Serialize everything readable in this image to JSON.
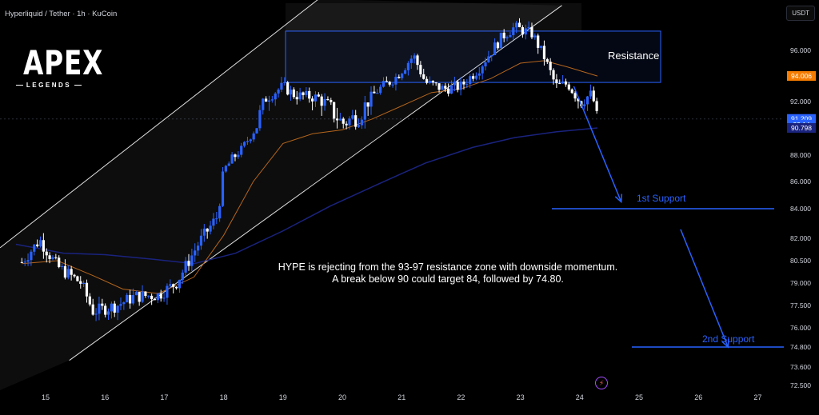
{
  "header": {
    "symbol": "Hyperliquid / Tether · 1h · KuCoin",
    "currency": "USDT"
  },
  "logo": {
    "main": "APEX",
    "sub": "LEGENDS"
  },
  "note": {
    "line1": "HYPE is rejecting from the 93-97 resistance zone with downside momentum.",
    "line2": "A break below 90 could target 84, followed by 74.80."
  },
  "labels": {
    "resistance": "Resistance",
    "support1": "1st Support",
    "support2": "2nd Support"
  },
  "colors": {
    "bull": "#2962ff",
    "bear": "#ffffff",
    "ema_short": "#b5651d",
    "ema_long": "#1a237e",
    "resistance_box": "#2962ff",
    "support": "#2962ff",
    "price_tag": "#f57c00"
  },
  "icons": {
    "flash": "lightning-icon"
  },
  "chart_data": {
    "type": "candlestick",
    "x_ticks": [
      "15",
      "16",
      "17",
      "18",
      "19",
      "20",
      "21",
      "22",
      "23",
      "24",
      "25",
      "26",
      "27"
    ],
    "y_ticks": [
      "96.000",
      "94.006",
      "92.000",
      "91.209",
      "23:14",
      "90.798",
      "88.000",
      "86.000",
      "84.000",
      "82.000",
      "80.500",
      "79.000",
      "77.500",
      "76.000",
      "74.800",
      "73.600",
      "72.500"
    ],
    "price_tags": [
      {
        "label": "94.006",
        "value": 94.006,
        "color": "#f57c00"
      },
      {
        "label": "91.209",
        "value": 91.209,
        "color": "#2962ff"
      },
      {
        "label": "23:14",
        "value": 90.95,
        "color": "#2962ff"
      },
      {
        "label": "90.798",
        "value": 90.798,
        "color": "#1a237e"
      }
    ],
    "resistance_zone": [
      93.5,
      97.5
    ],
    "support_levels": [
      84.0,
      74.8
    ],
    "price_path": [
      [
        "14.6",
        80.4
      ],
      [
        "14.9",
        81.9
      ],
      [
        "15.2",
        80.1
      ],
      [
        "15.6",
        79.0
      ],
      [
        "15.8",
        77.1
      ],
      [
        "16.2",
        77.5
      ],
      [
        "16.5",
        78.1
      ],
      [
        "16.9",
        78.2
      ],
      [
        "17.2",
        79.0
      ],
      [
        "17.6",
        81.8
      ],
      [
        "17.9",
        83.5
      ],
      [
        "18.0",
        86.8
      ],
      [
        "18.3",
        88.6
      ],
      [
        "18.7",
        92.2
      ],
      [
        "19.0",
        93.2
      ],
      [
        "19.2",
        92.5
      ],
      [
        "19.6",
        92.3
      ],
      [
        "20.0",
        91.0
      ],
      [
        "20.3",
        91.4
      ],
      [
        "20.6",
        92.9
      ],
      [
        "20.9",
        93.9
      ],
      [
        "21.2",
        95.6
      ],
      [
        "21.4",
        93.5
      ],
      [
        "21.7",
        93.0
      ],
      [
        "22.0",
        93.2
      ],
      [
        "22.3",
        94.6
      ],
      [
        "22.7",
        97.1
      ],
      [
        "22.9",
        97.8
      ],
      [
        "23.2",
        97.3
      ],
      [
        "23.4",
        95.5
      ],
      [
        "23.6",
        93.2
      ],
      [
        "23.8",
        93.4
      ],
      [
        "24.0",
        92.0
      ],
      [
        "24.2",
        92.6
      ],
      [
        "24.3",
        91.0
      ]
    ],
    "ema_short": [
      [
        "14.6",
        80.3
      ],
      [
        "15.2",
        80.5
      ],
      [
        "15.8",
        79.5
      ],
      [
        "16.3",
        78.6
      ],
      [
        "16.9",
        78.3
      ],
      [
        "17.5",
        79.4
      ],
      [
        "18.0",
        82.2
      ],
      [
        "18.5",
        86.0
      ],
      [
        "19.0",
        89.2
      ],
      [
        "19.5",
        90.2
      ],
      [
        "20.0",
        90.6
      ],
      [
        "20.5",
        91.2
      ],
      [
        "21.0",
        91.8
      ],
      [
        "21.5",
        92.7
      ],
      [
        "22.0",
        93.0
      ],
      [
        "22.5",
        93.8
      ],
      [
        "23.0",
        95.0
      ],
      [
        "23.4",
        95.2
      ],
      [
        "23.8",
        94.7
      ],
      [
        "24.3",
        94.0
      ]
    ],
    "ema_long": [
      [
        "14.5",
        81.6
      ],
      [
        "15.3",
        81.0
      ],
      [
        "16.0",
        80.9
      ],
      [
        "16.8",
        80.6
      ],
      [
        "17.5",
        80.3
      ],
      [
        "18.2",
        81.0
      ],
      [
        "19.0",
        82.5
      ],
      [
        "19.8",
        84.2
      ],
      [
        "20.6",
        85.8
      ],
      [
        "21.4",
        87.4
      ],
      [
        "22.2",
        88.8
      ],
      [
        "22.9",
        89.8
      ],
      [
        "23.6",
        90.4
      ],
      [
        "24.3",
        90.8
      ]
    ],
    "channel": {
      "upper": [
        [
          "14.5",
          82.2
        ],
        [
          "19.6",
          100.0
        ]
      ],
      "lower": [
        [
          "15.4",
          74.0
        ],
        [
          "23.7",
          99.5
        ]
      ]
    },
    "projection": [
      [
        "23.9",
        93.2
      ],
      [
        "24.7",
        84.5
      ],
      [
        "25.7",
        82.6
      ],
      [
        "26.5",
        74.8
      ]
    ]
  }
}
